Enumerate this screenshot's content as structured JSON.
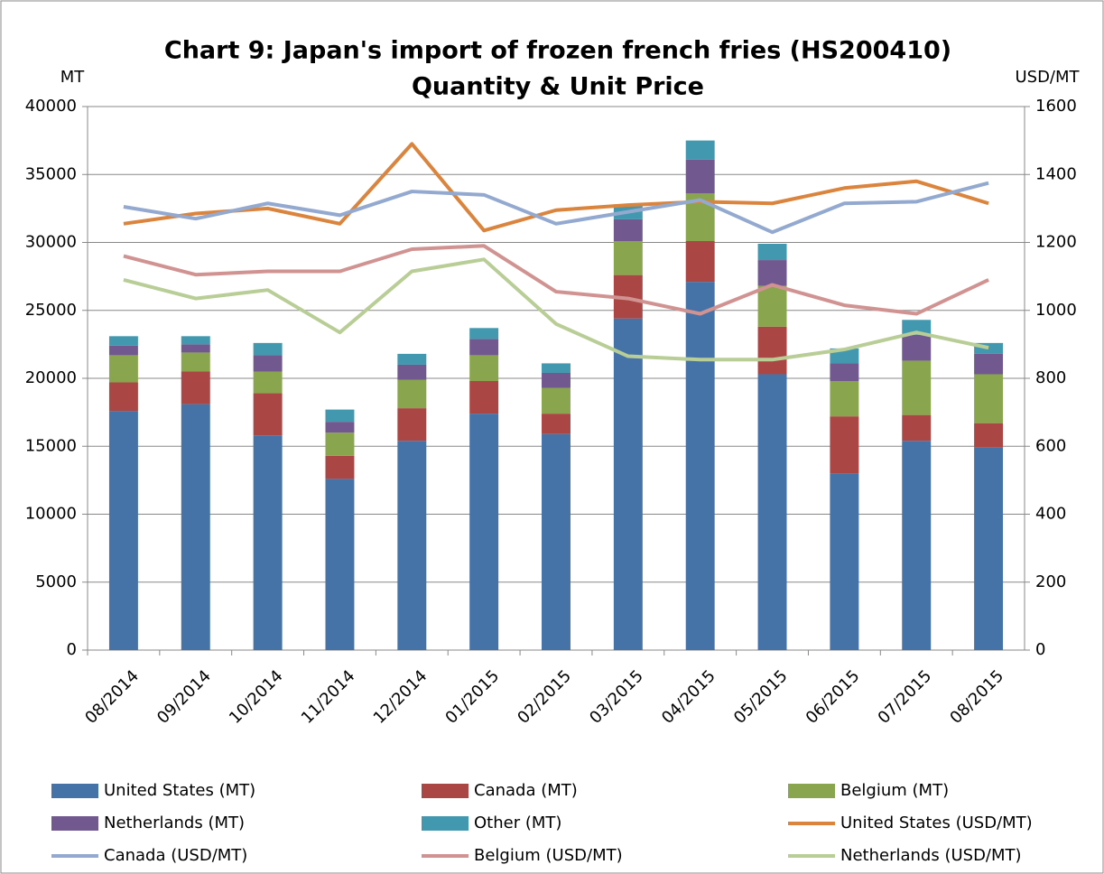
{
  "chart_data": {
    "type": "bar",
    "title": [
      "Chart 9: Japan's import of frozen french fries (HS200410)",
      "Quantity & Unit Price"
    ],
    "y_label": "MT",
    "y2_label": "USD/MT",
    "categories": [
      "08/2014",
      "09/2014",
      "10/2014",
      "11/2014",
      "12/2014",
      "01/2015",
      "02/2015",
      "03/2015",
      "04/2015",
      "05/2015",
      "06/2015",
      "07/2015",
      "08/2015"
    ],
    "stacked": true,
    "grid": true,
    "legend": "bottom",
    "ylim": [
      0,
      40000
    ],
    "yticks": [
      0,
      5000,
      10000,
      15000,
      20000,
      25000,
      30000,
      35000,
      40000
    ],
    "y2lim": [
      0,
      1600
    ],
    "y2ticks": [
      0,
      200,
      400,
      600,
      800,
      1000,
      1200,
      1400,
      1600
    ],
    "series": [
      {
        "name": "United States (MT)",
        "type": "bar",
        "color": "#4572a7",
        "values": [
          17600,
          18100,
          15800,
          12600,
          15400,
          17400,
          15900,
          24400,
          27100,
          20300,
          13000,
          15400,
          14900
        ]
      },
      {
        "name": "Canada (MT)",
        "type": "bar",
        "color": "#aa4643",
        "values": [
          2100,
          2400,
          3100,
          1700,
          2400,
          2400,
          1500,
          3200,
          3000,
          3500,
          4200,
          1900,
          1800
        ]
      },
      {
        "name": "Belgium (MT)",
        "type": "bar",
        "color": "#89a54e",
        "values": [
          2000,
          1400,
          1600,
          1700,
          2100,
          1900,
          1900,
          2500,
          3500,
          3000,
          2600,
          4000,
          3600
        ]
      },
      {
        "name": "Netherlands (MT)",
        "type": "bar",
        "color": "#71588f",
        "values": [
          700,
          600,
          1200,
          800,
          1100,
          1200,
          1100,
          1600,
          2500,
          1900,
          1300,
          1900,
          1500
        ]
      },
      {
        "name": "Other (MT)",
        "type": "bar",
        "color": "#4198af",
        "values": [
          700,
          600,
          900,
          900,
          800,
          800,
          700,
          1100,
          1400,
          1200,
          1100,
          1100,
          800
        ]
      },
      {
        "name": "United States (USD/MT)",
        "type": "line",
        "axis": "y2",
        "color": "#db843d",
        "values": [
          1255,
          1285,
          1300,
          1255,
          1490,
          1235,
          1295,
          1310,
          1320,
          1315,
          1360,
          1380,
          1315
        ]
      },
      {
        "name": "Canada (USD/MT)",
        "type": "line",
        "axis": "y2",
        "color": "#93a9cf",
        "values": [
          1305,
          1270,
          1315,
          1280,
          1350,
          1340,
          1255,
          1290,
          1325,
          1230,
          1315,
          1320,
          1375
        ]
      },
      {
        "name": "Belgium (USD/MT)",
        "type": "line",
        "axis": "y2",
        "color": "#d19392",
        "values": [
          1160,
          1105,
          1115,
          1115,
          1180,
          1190,
          1055,
          1035,
          990,
          1075,
          1015,
          990,
          1090
        ]
      },
      {
        "name": "Netherlands (USD/MT)",
        "type": "line",
        "axis": "y2",
        "color": "#b9cd96",
        "values": [
          1090,
          1035,
          1060,
          935,
          1115,
          1150,
          960,
          865,
          855,
          855,
          885,
          935,
          890
        ]
      }
    ]
  }
}
